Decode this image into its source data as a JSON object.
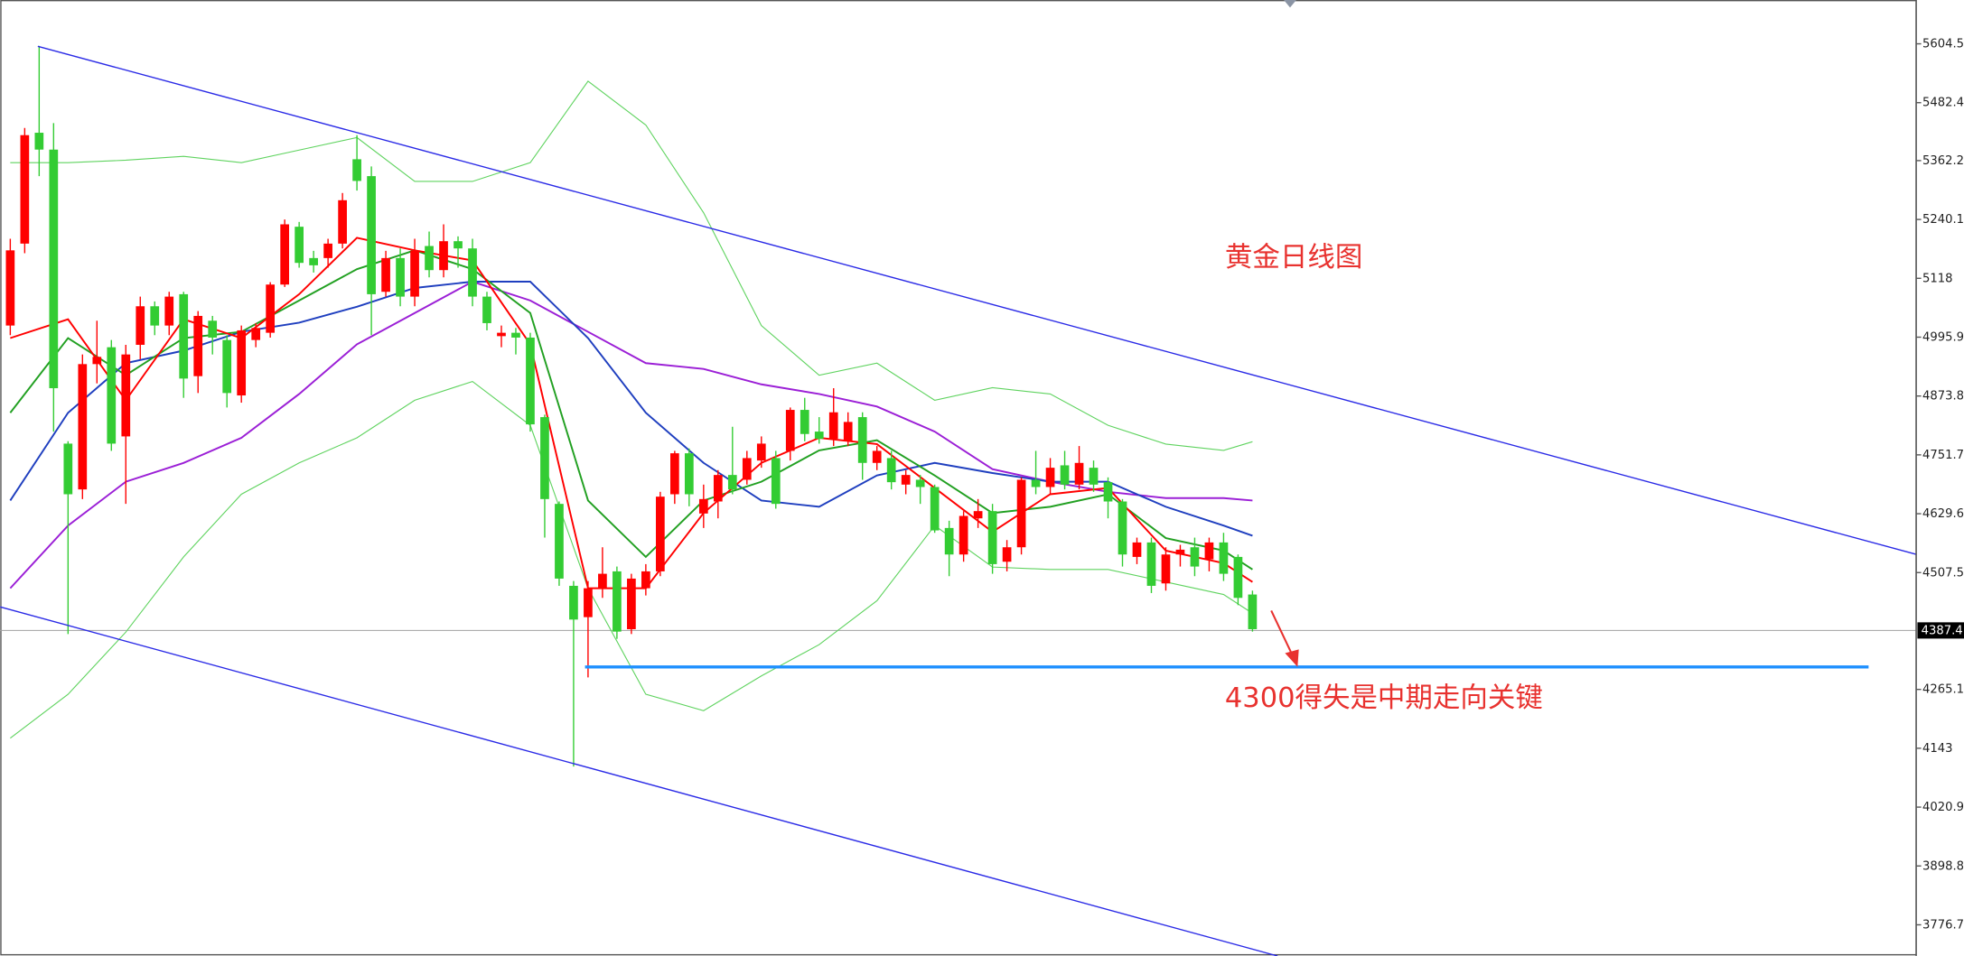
{
  "chart_data": {
    "type": "candlestick",
    "annotations": [
      "黄金日线图",
      "4300得失是中期走向关键"
    ],
    "up_color": "#ff0000",
    "down_color": "#33cc33",
    "open": [
      5020,
      5190,
      5420,
      5385,
      4775,
      4680,
      4940,
      4975,
      4790,
      4980,
      5060,
      5020,
      5085,
      4915,
      5030,
      4990,
      4875,
      4990,
      5005,
      5105,
      5225,
      5160,
      5160,
      5190,
      5365,
      5330,
      5090,
      5160,
      5080,
      5185,
      5135,
      5195,
      5180,
      5080,
      4998,
      5005,
      4995,
      4830,
      4650,
      4480,
      4415,
      4475,
      4510,
      4390,
      4475,
      4510,
      4670,
      4755,
      4630,
      4655,
      4710,
      4700,
      4740,
      4745,
      4760,
      4845,
      4800,
      4785,
      4780,
      4830,
      4735,
      4745,
      4690,
      4700,
      4685,
      4600,
      4545,
      4620,
      4635,
      4530,
      4560,
      4700,
      4685,
      4730,
      4690,
      4725,
      4695,
      4655,
      4540,
      4570,
      4485,
      4545,
      4560,
      4535,
      4570,
      4540,
      4462
    ],
    "high": [
      5200,
      5430,
      5600,
      5440,
      4780,
      4960,
      5030,
      4990,
      4980,
      5080,
      5070,
      5090,
      5090,
      5050,
      5040,
      5000,
      5020,
      5025,
      5110,
      5240,
      5235,
      5175,
      5200,
      5295,
      5415,
      5350,
      5175,
      5180,
      5200,
      5215,
      5230,
      5205,
      5200,
      5090,
      5020,
      5015,
      5005,
      4835,
      4655,
      4490,
      4490,
      4560,
      4520,
      4505,
      4525,
      4675,
      4760,
      4765,
      4690,
      4720,
      4810,
      4760,
      4790,
      4760,
      4850,
      4870,
      4830,
      4890,
      4840,
      4840,
      4770,
      4760,
      4720,
      4710,
      4690,
      4615,
      4635,
      4660,
      4650,
      4575,
      4705,
      4760,
      4745,
      4760,
      4770,
      4740,
      4705,
      4660,
      4580,
      4580,
      4560,
      4565,
      4580,
      4580,
      4590,
      4545,
      4470
    ],
    "low": [
      5000,
      5170,
      5330,
      4800,
      4380,
      4660,
      4900,
      4760,
      4650,
      4950,
      5000,
      5000,
      4870,
      4880,
      4960,
      4850,
      4860,
      4975,
      4995,
      5100,
      5140,
      5130,
      5140,
      5180,
      5300,
      5000,
      5080,
      5060,
      5060,
      5120,
      5120,
      5140,
      5060,
      5010,
      4975,
      4960,
      4800,
      4580,
      4480,
      4105,
      4290,
      4455,
      4370,
      4380,
      4460,
      4500,
      4650,
      4645,
      4600,
      4620,
      4670,
      4690,
      4725,
      4640,
      4740,
      4780,
      4775,
      4770,
      4770,
      4700,
      4720,
      4680,
      4670,
      4650,
      4590,
      4500,
      4530,
      4600,
      4505,
      4510,
      4545,
      4670,
      4670,
      4680,
      4680,
      4675,
      4620,
      4520,
      4525,
      4465,
      4470,
      4520,
      4500,
      4510,
      4490,
      4440,
      4385
    ],
    "close": [
      5176,
      5415,
      5385,
      4890,
      4670,
      4940,
      4955,
      4775,
      4960,
      5060,
      5020,
      5080,
      4910,
      5040,
      4995,
      4880,
      5010,
      5015,
      5105,
      5230,
      5150,
      5145,
      5190,
      5280,
      5320,
      5085,
      5160,
      5080,
      5175,
      5135,
      5195,
      5180,
      5080,
      5025,
      5005,
      4995,
      4815,
      4660,
      4495,
      4410,
      4475,
      4505,
      4385,
      4495,
      4510,
      4665,
      4755,
      4670,
      4660,
      4710,
      4680,
      4745,
      4775,
      4650,
      4845,
      4795,
      4785,
      4840,
      4820,
      4735,
      4760,
      4695,
      4710,
      4685,
      4595,
      4545,
      4625,
      4635,
      4525,
      4560,
      4700,
      4685,
      4725,
      4690,
      4735,
      4690,
      4655,
      4545,
      4570,
      4480,
      4545,
      4555,
      4520,
      4570,
      4505,
      4455,
      4390
    ],
    "lines": [
      {
        "color": "#5fd35f",
        "x": [
          0,
          4,
          8,
          12,
          16,
          20,
          24,
          28,
          32,
          36,
          40,
          44,
          48,
          52,
          56,
          60,
          64,
          68,
          72,
          76,
          80,
          84,
          86
        ],
        "values": [
          5358,
          5358,
          5363,
          5371,
          5358,
          5384,
          5410,
          5319,
          5319,
          5358,
          5527,
          5436,
          5254,
          5020,
          4917,
          4942,
          4865,
          4891,
          4878,
          4813,
          4774,
          4761,
          4779
        ]
      },
      {
        "color": "#5fd35f",
        "x": [
          0,
          4,
          8,
          12,
          16,
          20,
          24,
          28,
          32,
          36,
          40,
          44,
          48,
          52,
          56,
          60,
          64,
          68,
          72,
          76,
          80,
          84,
          86
        ],
        "values": [
          4164,
          4255,
          4384,
          4540,
          4670,
          4735,
          4787,
          4865,
          4904,
          4813,
          4475,
          4255,
          4221,
          4293,
          4358,
          4449,
          4605,
          4519,
          4514,
          4514,
          4488,
          4462,
          4423
        ]
      },
      {
        "color": "#9b1fd6",
        "x": [
          0,
          4,
          8,
          12,
          16,
          20,
          24,
          28,
          32,
          36,
          40,
          44,
          48,
          52,
          56,
          60,
          64,
          68,
          72,
          76,
          80,
          84,
          86
        ],
        "values": [
          4475,
          4605,
          4696,
          4735,
          4787,
          4878,
          4981,
          5046,
          5111,
          5072,
          5007,
          4942,
          4930,
          4898,
          4878,
          4852,
          4800,
          4722,
          4696,
          4675,
          4662,
          4662,
          4657
        ]
      },
      {
        "color": "#1f3fbf",
        "x": [
          0,
          4,
          8,
          12,
          16,
          20,
          24,
          28,
          32,
          36,
          40,
          44,
          48,
          52,
          56,
          60,
          64,
          68,
          72,
          76,
          80,
          84,
          86
        ],
        "values": [
          4657,
          4839,
          4942,
          4968,
          5007,
          5026,
          5059,
          5098,
          5111,
          5111,
          4994,
          4839,
          4735,
          4657,
          4644,
          4709,
          4735,
          4714,
          4696,
          4696,
          4644,
          4605,
          4584
        ]
      },
      {
        "color": "#22a022",
        "x": [
          0,
          4,
          8,
          12,
          16,
          20,
          24,
          28,
          32,
          36,
          40,
          44,
          48,
          52,
          56,
          60,
          64,
          68,
          72,
          76,
          80,
          84,
          86
        ],
        "values": [
          4839,
          4994,
          4917,
          4994,
          5007,
          5072,
          5137,
          5176,
          5137,
          5046,
          4657,
          4540,
          4657,
          4696,
          4761,
          4782,
          4709,
          4631,
          4644,
          4670,
          4579,
          4553,
          4514
        ]
      },
      {
        "color": "#ff0000",
        "x": [
          0,
          4,
          8,
          12,
          16,
          20,
          24,
          28,
          32,
          36,
          40,
          44,
          48,
          52,
          56,
          60,
          64,
          68,
          72,
          76,
          80,
          84,
          86
        ],
        "values": [
          4994,
          5033,
          4865,
          5033,
          4994,
          5085,
          5202,
          5176,
          5155,
          4981,
          4475,
          4475,
          4631,
          4735,
          4787,
          4774,
          4683,
          4592,
          4670,
          4683,
          4553,
          4527,
          4488
        ]
      }
    ],
    "last_price": 4387.4,
    "ylim": [
      3712,
      5695.4
    ],
    "yticks": [
      5604.5,
      5482.4,
      5362.2,
      5240.1,
      5118.0,
      4995.9,
      4873.8,
      4751.7,
      4629.6,
      4507.5,
      4265.1,
      4143.0,
      4020.9,
      3898.8,
      3776.7
    ]
  }
}
